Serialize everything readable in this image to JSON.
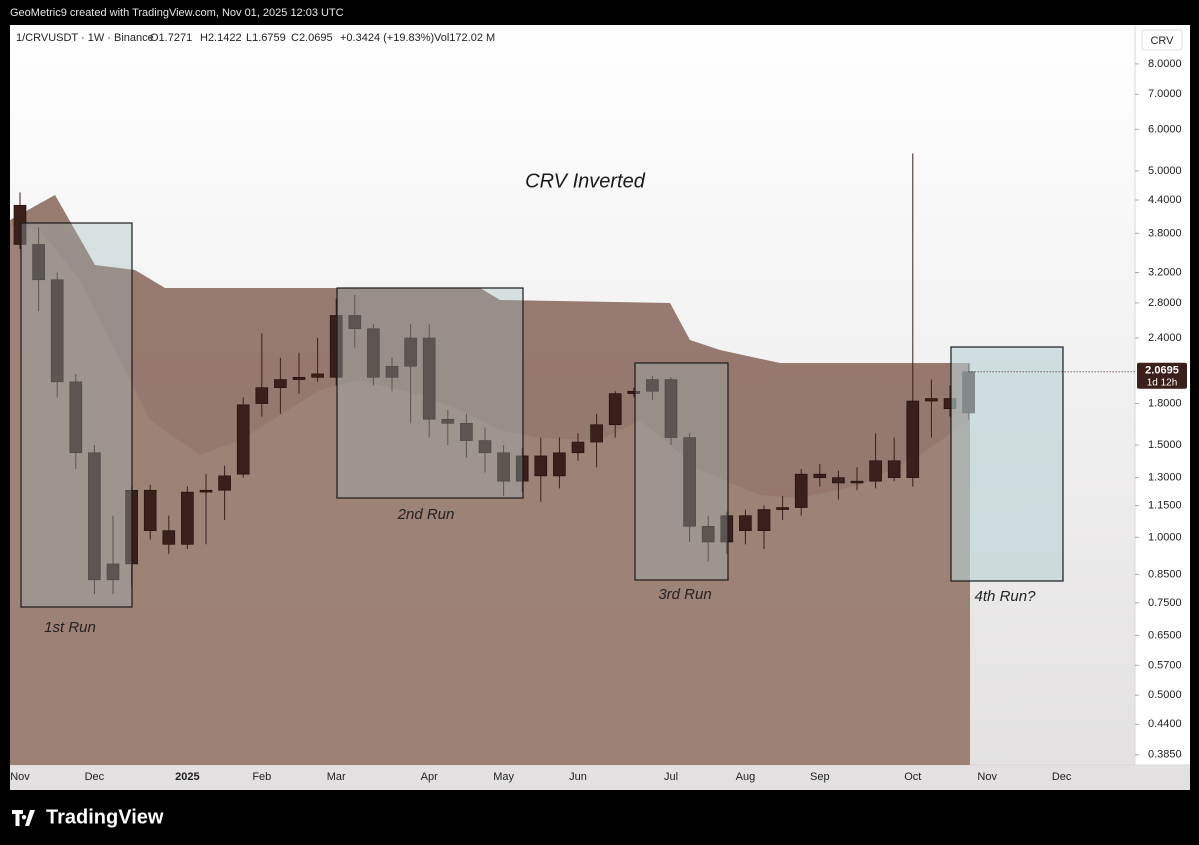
{
  "header": {
    "caption": "GeoMetric9 created with TradingView.com, Nov 01, 2025 12:03 UTC"
  },
  "legend": {
    "symbol": "1/CRVUSDT · 1W · Binance",
    "open": "O1.7271",
    "high": "H2.1422",
    "low": "L1.6759",
    "close": "C2.0695",
    "change": "+0.3424 (+19.83%)",
    "volume": "Vol172.02 M"
  },
  "footer": {
    "brand": "TradingView"
  },
  "chart_data": {
    "type": "candlestick",
    "title": "CRV Inverted",
    "scale_label": "CRV",
    "countdown": "1d 12h",
    "log_scale": true,
    "color": "#3a1f1a",
    "annotations": [
      "1st Run",
      "2nd Run",
      "3rd Run",
      "4th Run?"
    ],
    "categories": [
      "Nov",
      null,
      null,
      null,
      "Dec",
      null,
      null,
      null,
      null,
      "2025",
      null,
      null,
      null,
      "Feb",
      null,
      null,
      null,
      "Mar",
      null,
      null,
      null,
      null,
      "Apr",
      null,
      null,
      null,
      "May",
      null,
      null,
      null,
      "Jun",
      null,
      null,
      null,
      null,
      "Jul",
      null,
      null,
      null,
      "Aug",
      null,
      null,
      null,
      "Sep",
      null,
      null,
      null,
      null,
      "Oct",
      null,
      null,
      null,
      "Nov",
      null,
      null,
      null,
      "Dec",
      null,
      null,
      null
    ],
    "open": [
      4.3,
      3.62,
      3.1,
      1.98,
      1.45,
      0.83,
      0.89,
      1.23,
      1.03,
      0.97,
      1.22,
      1.23,
      1.32,
      1.8,
      1.93,
      2.0,
      2.02,
      2.02,
      2.65,
      2.5,
      2.02,
      2.12,
      2.4,
      1.68,
      1.65,
      1.53,
      1.45,
      1.28,
      1.43,
      1.31,
      1.45,
      1.52,
      1.64,
      1.88,
      1.9,
      2.0,
      1.55,
      1.05,
      0.98,
      1.1,
      1.03,
      1.13,
      1.14,
      1.32,
      1.3,
      1.27,
      1.28,
      1.4,
      1.3,
      1.82,
      1.84,
      1.7271,
      null,
      null,
      null,
      null,
      null,
      null,
      null,
      null
    ],
    "high": [
      4.55,
      3.9,
      3.2,
      2.05,
      1.5,
      1.1,
      1.25,
      1.26,
      1.1,
      1.25,
      1.32,
      1.37,
      1.85,
      2.45,
      2.2,
      2.25,
      2.4,
      2.85,
      2.9,
      2.55,
      2.2,
      2.55,
      2.55,
      1.75,
      1.72,
      1.62,
      1.5,
      1.48,
      1.55,
      1.55,
      1.58,
      1.72,
      1.9,
      1.93,
      2.03,
      2.02,
      1.58,
      1.1,
      1.12,
      1.13,
      1.15,
      1.2,
      1.35,
      1.38,
      1.34,
      1.36,
      1.58,
      1.55,
      5.4,
      2.0,
      1.95,
      2.1422,
      null,
      null,
      null,
      null,
      null,
      null,
      null,
      null
    ],
    "low": [
      3.55,
      2.7,
      1.85,
      1.35,
      0.78,
      0.78,
      0.8,
      0.99,
      0.93,
      0.95,
      0.97,
      1.08,
      1.3,
      1.7,
      1.72,
      1.88,
      1.98,
      1.95,
      2.3,
      1.95,
      1.9,
      1.65,
      1.55,
      1.5,
      1.42,
      1.33,
      1.2,
      1.22,
      1.17,
      1.24,
      1.4,
      1.36,
      1.55,
      1.85,
      1.83,
      1.5,
      0.98,
      0.9,
      0.93,
      0.97,
      0.95,
      1.08,
      1.1,
      1.25,
      1.18,
      1.23,
      1.24,
      1.28,
      1.25,
      1.55,
      1.7,
      1.6759,
      null,
      null,
      null,
      null,
      null,
      null,
      null,
      null
    ],
    "close": [
      3.62,
      3.1,
      1.98,
      1.45,
      0.83,
      0.89,
      1.23,
      1.03,
      0.97,
      1.22,
      1.23,
      1.31,
      1.79,
      1.93,
      2.0,
      2.02,
      2.05,
      2.65,
      2.5,
      2.02,
      2.12,
      2.4,
      1.68,
      1.65,
      1.53,
      1.45,
      1.28,
      1.43,
      1.31,
      1.45,
      1.52,
      1.64,
      1.88,
      1.9,
      2.0,
      1.55,
      1.05,
      0.98,
      1.1,
      1.03,
      1.13,
      1.14,
      1.32,
      1.3,
      1.27,
      1.28,
      1.4,
      1.3,
      1.82,
      1.84,
      1.76,
      2.0695,
      null,
      null,
      null,
      null,
      null,
      null,
      null,
      null
    ],
    "ylim": [
      0.368,
      9.49
    ],
    "yticks": [
      {
        "value": 8,
        "label": "8.0000"
      },
      {
        "value": 7,
        "label": "7.0000"
      },
      {
        "value": 6,
        "label": "6.0000"
      },
      {
        "value": 5,
        "label": "5.0000"
      },
      {
        "value": 4.4,
        "label": "4.4000"
      },
      {
        "value": 3.8,
        "label": "3.8000"
      },
      {
        "value": 3.2,
        "label": "3.2000"
      },
      {
        "value": 2.8,
        "label": "2.8000"
      },
      {
        "value": 2.4,
        "label": "2.4000"
      },
      {
        "value": 1.8,
        "label": "1.8000"
      },
      {
        "value": 1.5,
        "label": "1.5000"
      },
      {
        "value": 1.3,
        "label": "1.3000"
      },
      {
        "value": 1.15,
        "label": "1.1500"
      },
      {
        "value": 1,
        "label": "1.0000"
      },
      {
        "value": 0.85,
        "label": "0.8500"
      },
      {
        "value": 0.75,
        "label": "0.7500"
      },
      {
        "value": 0.65,
        "label": "0.6500"
      },
      {
        "value": 0.57,
        "label": "0.5700"
      },
      {
        "value": 0.5,
        "label": "0.5000"
      },
      {
        "value": 0.44,
        "label": "0.4400"
      },
      {
        "value": 0.385,
        "label": "0.3850"
      }
    ]
  }
}
